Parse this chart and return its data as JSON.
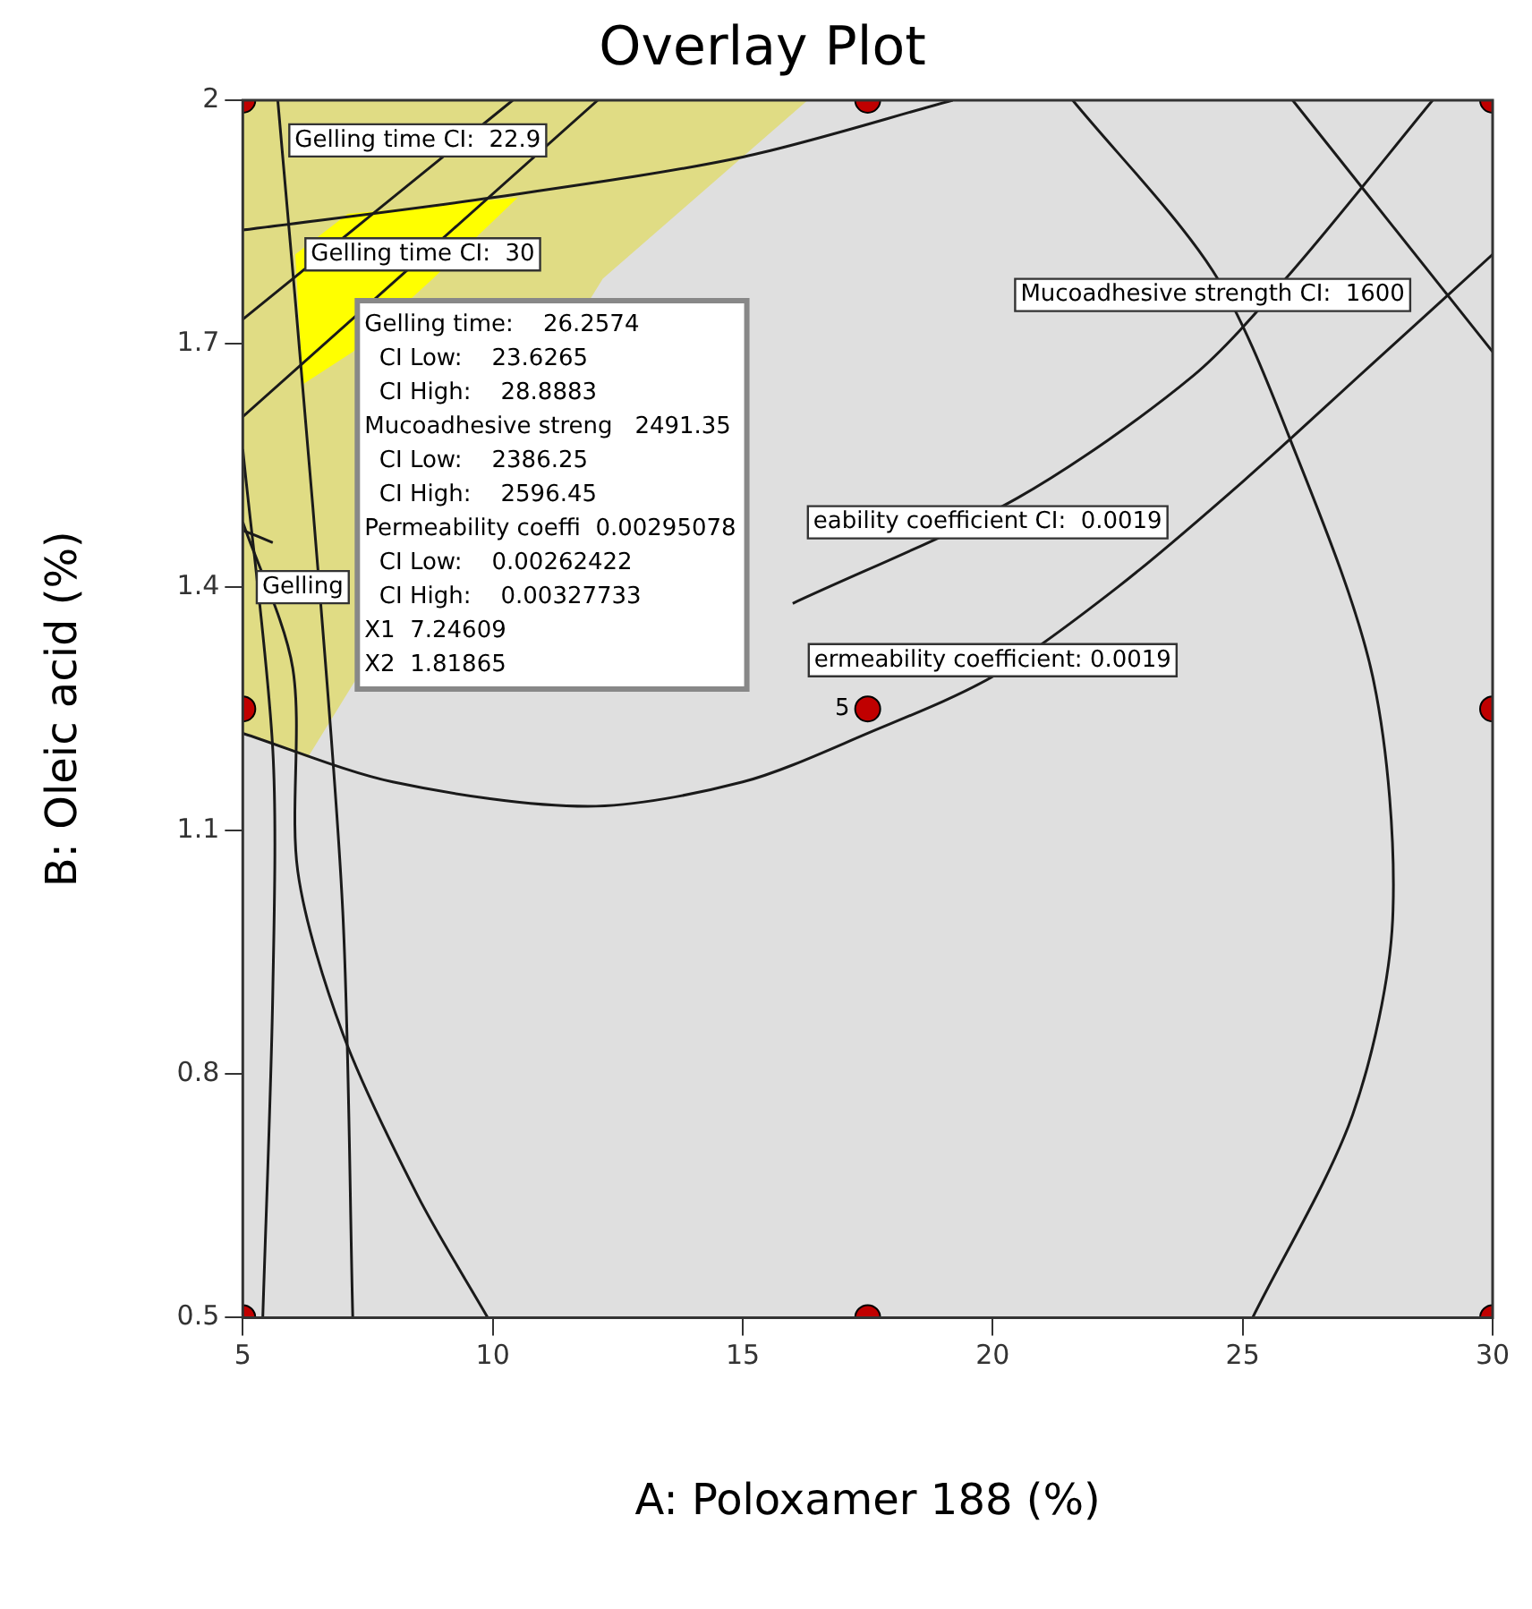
{
  "chart_data": {
    "type": "line",
    "title": "Overlay Plot",
    "xlabel": "A: Poloxamer 188 (%)",
    "ylabel": "B: Oleic acid (%)",
    "xlim": [
      5,
      30
    ],
    "xticks": [
      5,
      10,
      15,
      20,
      25,
      30
    ],
    "ylim": [
      0.5,
      2
    ],
    "yticks": [
      0.5,
      0.8,
      1.1,
      1.4,
      1.7,
      2
    ],
    "grid": false,
    "legend": false,
    "series": [
      {
        "type": "area",
        "color": "#e0dc84",
        "x": [
          5,
          16.3,
          12.2,
          6.3,
          5
        ],
        "values": [
          2,
          2,
          1.78,
          1.19,
          1.22
        ]
      },
      {
        "type": "area",
        "color": "#ffff00",
        "x": [
          6.05,
          7.1,
          10.5,
          8.8,
          7.2,
          6.2
        ],
        "values": [
          1.81,
          1.86,
          1.88,
          1.78,
          1.69,
          1.65
        ]
      },
      {
        "color": "#1a1a1a",
        "x": [
          21.6,
          24.4,
          25.9,
          27.6,
          28,
          27.2,
          25.2
        ],
        "values": [
          2,
          1.79,
          1.59,
          1.29,
          0.99,
          0.75,
          0.5
        ]
      },
      {
        "color": "#1a1a1a",
        "x": [
          5,
          8,
          11.9,
          15,
          17.5,
          20,
          22.5,
          25,
          27.5,
          30
        ],
        "values": [
          1.22,
          1.16,
          1.13,
          1.16,
          1.22,
          1.29,
          1.4,
          1.53,
          1.67,
          1.81
        ]
      },
      {
        "color": "#1a1a1a",
        "x": [
          5,
          5.6,
          8,
          12,
          16,
          20.5,
          24,
          26,
          28.8
        ],
        "values": [
          1.47,
          1.455,
          null,
          null,
          1.38,
          1.51,
          1.66,
          1.79,
          2
        ]
      },
      {
        "color": "#1a1a1a",
        "x": [
          26,
          30
        ],
        "values": [
          2,
          1.69
        ]
      },
      {
        "color": "#1a1a1a",
        "x": [
          5,
          10,
          15,
          19.2
        ],
        "values": [
          1.84,
          1.88,
          1.93,
          2
        ]
      },
      {
        "color": "#1a1a1a",
        "x": [
          5,
          10.4
        ],
        "values": [
          1.73,
          2
        ]
      },
      {
        "color": "#1a1a1a",
        "x": [
          5,
          12.1
        ],
        "values": [
          1.61,
          2
        ]
      },
      {
        "color": "#1a1a1a",
        "x": [
          5,
          6,
          6.1,
          7,
          8.5,
          9.9
        ],
        "values": [
          1.48,
          1.3,
          1.05,
          0.85,
          0.65,
          0.5
        ]
      },
      {
        "color": "#1a1a1a",
        "x": [
          5,
          5.6,
          5.6,
          5.4
        ],
        "values": [
          1.57,
          1.2,
          0.9,
          0.5
        ]
      },
      {
        "color": "#1a1a1a",
        "x": [
          5.7,
          6.4,
          7,
          7.2
        ],
        "values": [
          2,
          1.5,
          1,
          0.5
        ]
      },
      {
        "type": "scatter",
        "color": "#c00000",
        "marker": "circle",
        "x": [
          5,
          17.5,
          30,
          5,
          17.5,
          30,
          5,
          17.5,
          30
        ],
        "values": [
          2,
          2,
          2,
          1.25,
          1.25,
          1.25,
          0.5,
          0.5,
          0.5
        ]
      }
    ],
    "annotations": [
      "Gelling time CI:  22.9",
      {
        "text": "Gelling time CI:  30",
        "x": 8.6,
        "y": 1.81
      },
      "Gelling",
      "Mucoadhesive strength CI:  1600",
      {
        "text": "eability coefficient CI:  0.0019",
        "x": 19.9,
        "y": 1.48
      },
      "ermeability coefficient: 0.0019",
      {
        "text": "5",
        "x": 17.5,
        "y": 1.25
      },
      "Gelling time:    26.2574",
      "  CI Low:    23.6265",
      "  CI High:    28.8883",
      "Mucoadhesive streng   2491.35",
      "  CI Low:    2386.25",
      "  CI High:    2596.45",
      "Permeability coeffi  0.00295078",
      "  CI Low:    0.00262422",
      "  CI High:    0.00327733",
      "X1  7.24609",
      "X2  1.81865"
    ]
  }
}
